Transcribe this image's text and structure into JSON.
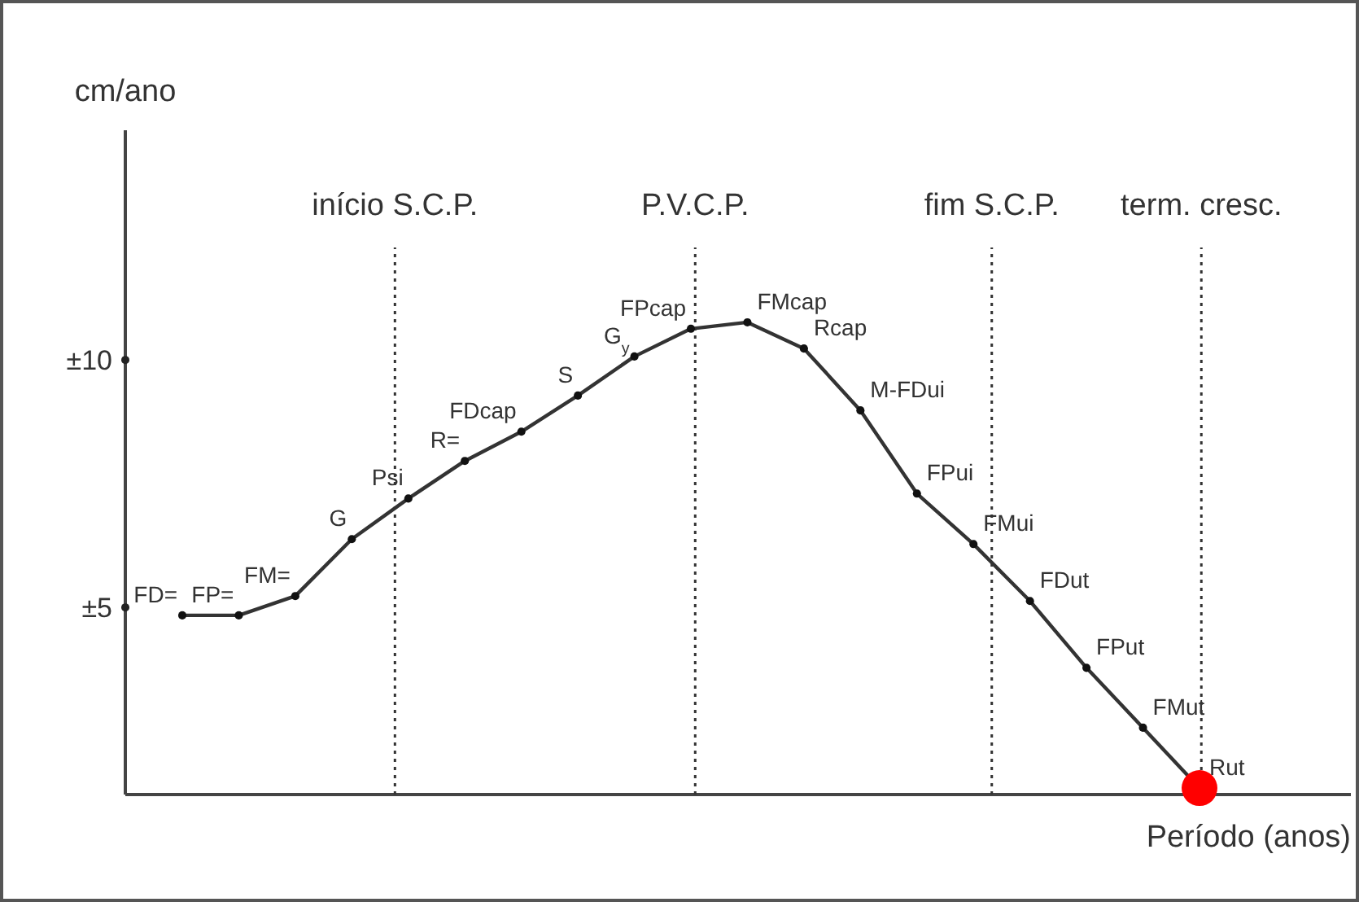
{
  "chart_data": {
    "type": "line",
    "xlabel": "Período (anos)",
    "ylabel": "cm/ano",
    "categories": [
      null,
      null,
      null,
      null,
      null,
      null,
      null,
      null,
      null,
      null,
      null,
      null,
      null,
      null,
      null,
      null,
      null,
      null,
      null
    ],
    "ylim": [
      1.22,
      14.64
    ],
    "yticks": [
      {
        "value": 10,
        "label": "±10"
      },
      {
        "value": 5,
        "label": "±5"
      }
    ],
    "tick_labels": "y",
    "grid": false,
    "marker": "circle",
    "line_style": "solid",
    "series": [
      {
        "color": "#333333",
        "values": [
          4.84,
          4.84,
          5.23,
          6.38,
          7.2,
          7.96,
          8.55,
          9.28,
          10.07,
          10.63,
          10.76,
          10.23,
          8.98,
          7.3,
          6.28,
          5.13,
          3.78,
          2.57,
          1.35
        ],
        "colors": [
          "#111111",
          "#111111",
          "#111111",
          "#111111",
          "#111111",
          "#111111",
          "#111111",
          "#111111",
          "#111111",
          "#111111",
          "#111111",
          "#111111",
          "#111111",
          "#111111",
          "#111111",
          "#111111",
          "#111111",
          "#111111",
          "#ff0000"
        ],
        "value_labels": [
          "FD=",
          "FP=",
          "FM=",
          "G",
          "Psi",
          "R=",
          "FDcap",
          "S",
          "G$_{y}$",
          "FPcap",
          "FMcap",
          "Rcap",
          "M-FDui",
          "FPui",
          "FMui",
          "FDut",
          "FPut",
          "FMut",
          "Rut"
        ]
      }
    ],
    "annotations": [
      "início S.C.P.",
      "P.V.C.P.",
      "fim S.C.P.",
      "term. cresc."
    ]
  }
}
